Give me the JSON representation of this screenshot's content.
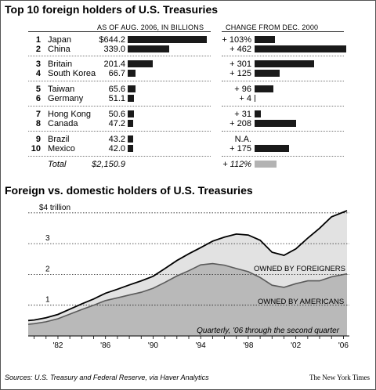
{
  "table": {
    "title": "Top 10 foreign holders of U.S. Treasuries",
    "col_value_header": "AS OF AUG. 2006, IN BILLIONS",
    "col_change_header": "CHANGE FROM DEC. 2000",
    "rows": [
      {
        "rank": "1",
        "country": "Japan",
        "value_label": "$644.2",
        "value": 644.2,
        "change_label": "+ 103%",
        "change": 103
      },
      {
        "rank": "2",
        "country": "China",
        "value_label": "339.0",
        "value": 339.0,
        "change_label": "+ 462",
        "change": 462
      },
      {
        "rank": "3",
        "country": "Britain",
        "value_label": "201.4",
        "value": 201.4,
        "change_label": "+ 301",
        "change": 301
      },
      {
        "rank": "4",
        "country": "South Korea",
        "value_label": "66.7",
        "value": 66.7,
        "change_label": "+ 125",
        "change": 125
      },
      {
        "rank": "5",
        "country": "Taiwan",
        "value_label": "65.6",
        "value": 65.6,
        "change_label": "+ 96",
        "change": 96
      },
      {
        "rank": "6",
        "country": "Germany",
        "value_label": "51.1",
        "value": 51.1,
        "change_label": "+ 4",
        "change": 4
      },
      {
        "rank": "7",
        "country": "Hong Kong",
        "value_label": "50.6",
        "value": 50.6,
        "change_label": "+ 31",
        "change": 31
      },
      {
        "rank": "8",
        "country": "Canada",
        "value_label": "47.2",
        "value": 47.2,
        "change_label": "+ 208",
        "change": 208
      },
      {
        "rank": "9",
        "country": "Brazil",
        "value_label": "43.2",
        "value": 43.2,
        "change_label": "N.A.",
        "change": null
      },
      {
        "rank": "10",
        "country": "Mexico",
        "value_label": "42.0",
        "value": 42.0,
        "change_label": "+ 175",
        "change": 175
      }
    ],
    "total": {
      "label": "Total",
      "value_label": "$2,150.9",
      "change_label": "+ 112%",
      "change": 112
    },
    "bar_color": "#1a1a1a",
    "total_bar_color": "#b3b3b3",
    "groups": [
      [
        0,
        1
      ],
      [
        2,
        3
      ],
      [
        4,
        5
      ],
      [
        6,
        7
      ],
      [
        8,
        9
      ]
    ]
  },
  "chart_data": {
    "type": "area",
    "title": "Foreign vs. domestic holders of U.S. Treasuries",
    "note": "Quarterly, '06 through the second quarter",
    "x_tick_labels": [
      "'82",
      "'86",
      "'90",
      "'94",
      "'98",
      "'02",
      "'06"
    ],
    "x_ticks": [
      1982,
      1986,
      1990,
      1994,
      1998,
      2002,
      2006
    ],
    "y_tick_labels": [
      "1",
      "2",
      "3",
      "$4 trillion"
    ],
    "y_ticks": [
      1,
      2,
      3,
      4
    ],
    "xlim": [
      1979.5,
      2006.5
    ],
    "ylim": [
      0,
      4.3
    ],
    "grid": true,
    "series": [
      {
        "name": "OWNED BY AMERICANS",
        "color": "#b9b9b9",
        "x": [
          1979.5,
          1980,
          1981,
          1982,
          1983,
          1984,
          1985,
          1986,
          1987,
          1988,
          1989,
          1990,
          1991,
          1992,
          1993,
          1994,
          1995,
          1996,
          1997,
          1998,
          1999,
          2000,
          2001,
          2002,
          2003,
          2004,
          2005,
          2006.3
        ],
        "values": [
          0.38,
          0.4,
          0.46,
          0.56,
          0.71,
          0.86,
          1.0,
          1.15,
          1.24,
          1.33,
          1.42,
          1.55,
          1.74,
          1.95,
          2.12,
          2.31,
          2.35,
          2.3,
          2.19,
          2.09,
          1.9,
          1.65,
          1.58,
          1.7,
          1.79,
          1.79,
          1.92,
          2.02
        ]
      },
      {
        "name": "OWNED BY FOREIGNERS",
        "color": "#e2e2e2",
        "x": [
          1979.5,
          1980,
          1981,
          1982,
          1983,
          1984,
          1985,
          1986,
          1987,
          1988,
          1989,
          1990,
          1991,
          1992,
          1993,
          1994,
          1995,
          1996,
          1997,
          1998,
          1999,
          2000,
          2001,
          2002,
          2003,
          2004,
          2005,
          2006.3
        ],
        "values": [
          0.12,
          0.12,
          0.13,
          0.14,
          0.16,
          0.18,
          0.2,
          0.24,
          0.28,
          0.33,
          0.37,
          0.39,
          0.45,
          0.5,
          0.55,
          0.56,
          0.73,
          0.91,
          1.12,
          1.19,
          1.21,
          1.07,
          1.04,
          1.13,
          1.39,
          1.71,
          1.95,
          2.05
        ]
      }
    ]
  },
  "footer": {
    "sources": "Sources: U.S. Treasury and Federal Reserve, via Haver Analytics",
    "credit": "The New York Times"
  }
}
